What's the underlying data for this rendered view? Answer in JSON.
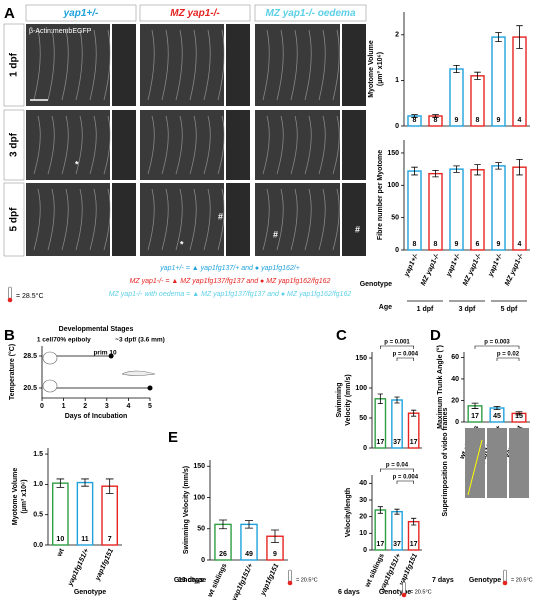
{
  "figure": {
    "letters": [
      "A",
      "B",
      "C",
      "D",
      "E"
    ],
    "a_columns": [
      "yap1+/-",
      "MZ yap1-/-",
      "MZ yap1-/- oedema"
    ],
    "a_rows": [
      "1 dpf",
      "3 dpf",
      "5 dpf"
    ],
    "a_stain": "β-Actin:membEGFP",
    "a_marks": [
      "*",
      "*",
      "#",
      "#",
      "#"
    ],
    "legend": [
      "yap1+/- = ▲ yap1fg137/+ and ● yap1fg162/+",
      "MZ yap1-/- = ▲ MZ yap1fg137/fg137 and ● MZ yap1fg162/fg162",
      "MZ yap1-/- with oedema = ▲ MZ yap1fg137/fg137 and ● MZ yap1fg162/fg162"
    ],
    "a_temp": "= 28.5°C",
    "d_side": "Superimposition of video frames"
  },
  "chart_data": [
    {
      "type": "bar",
      "ylabel": [
        "Myotome Volume",
        "(µm³ x10⁶)"
      ],
      "ylim": [
        0,
        2.5
      ],
      "yticks": [
        0,
        1,
        2
      ],
      "values": [
        0.22,
        0.22,
        1.25,
        1.1,
        1.95,
        1.95
      ],
      "errors": [
        0.03,
        0.03,
        0.08,
        0.08,
        0.1,
        0.25
      ],
      "n": [
        8,
        8,
        9,
        8,
        9,
        4
      ],
      "colors": [
        "#1fa2dc",
        "#e52421",
        "#1fa2dc",
        "#e52421",
        "#1fa2dc",
        "#e52421"
      ]
    },
    {
      "type": "bar",
      "ylabel": [
        "Fibre number per Myotome"
      ],
      "ylim": [
        0,
        170
      ],
      "yticks": [
        0,
        50,
        100,
        150
      ],
      "categories": [
        "yap1+/-",
        "MZ yap1-/-",
        "yap1+/-",
        "MZ yap1-/-",
        "yap1+/-",
        "MZ yap1-/-"
      ],
      "values": [
        122,
        118,
        125,
        124,
        130,
        128
      ],
      "errors": [
        6,
        5,
        5,
        8,
        5,
        12
      ],
      "n": [
        8,
        8,
        9,
        6,
        9,
        4
      ],
      "colors": [
        "#1fa2dc",
        "#e52421",
        "#1fa2dc",
        "#e52421",
        "#1fa2dc",
        "#e52421"
      ],
      "xlabel": "Genotype",
      "age_label": "Age",
      "age_groups": [
        "1 dpf",
        "3 dpf",
        "5 dpf"
      ]
    },
    {
      "type": "bar",
      "ylabel": [
        "Myotome Volume",
        "(µm³ x10⁶)"
      ],
      "ylim": [
        0,
        1.6
      ],
      "yticks": [
        {
          "value": 0,
          "label": "0.0"
        },
        {
          "value": 0.5,
          "label": "0.5"
        },
        {
          "value": 1,
          "label": "1.0"
        },
        {
          "value": 1.5,
          "label": "1.5"
        }
      ],
      "categories": [
        "wt",
        "yap1fg151/+",
        "yap1fg151"
      ],
      "values": [
        1.02,
        1.03,
        0.97
      ],
      "errors": [
        0.07,
        0.06,
        0.12
      ],
      "n": [
        10,
        11,
        7
      ],
      "colors": [
        "#2f9e44",
        "#1fa2dc",
        "#e52421"
      ],
      "xlabel": "Genotype"
    },
    {
      "type": "bar",
      "ylabel": [
        "Swimming",
        "Velocity (mm/s)"
      ],
      "ylim": [
        0,
        160
      ],
      "yticks": [
        0,
        50,
        100,
        150
      ],
      "values": [
        82,
        80,
        58
      ],
      "errors": [
        8,
        5,
        5
      ],
      "n": [
        17,
        37,
        17
      ],
      "colors": [
        "#2f9e44",
        "#1fa2dc",
        "#e52421"
      ],
      "annotations": [
        "p = 0.001",
        "p = 0.004"
      ]
    },
    {
      "type": "bar",
      "ylabel": [
        "Velocity/length"
      ],
      "ylim": [
        0,
        45
      ],
      "yticks": [
        0,
        10,
        20,
        30,
        40
      ],
      "categories": [
        "wt siblings",
        "yap1fg151/+",
        "yap1fg151"
      ],
      "values": [
        24,
        23,
        17
      ],
      "errors": [
        2,
        1.5,
        2
      ],
      "n": [
        17,
        37,
        17
      ],
      "colors": [
        "#2f9e44",
        "#1fa2dc",
        "#e52421"
      ],
      "annotations": [
        "p = 0.04",
        "p = 0.004"
      ],
      "xlabel": "Genotype",
      "note": "6 days",
      "temp": "= 20.5°C"
    },
    {
      "type": "bar",
      "ylabel": [
        "Maximum Trunk Angle (°)"
      ],
      "ylim": [
        0,
        65
      ],
      "yticks": [
        0,
        20,
        40,
        60
      ],
      "categories": [
        "wt siblings",
        "yap1fg151/+",
        "yap1fg151"
      ],
      "values": [
        15,
        13,
        8
      ],
      "errors": [
        2.5,
        1.5,
        1.5
      ],
      "n": [
        17,
        45,
        15
      ],
      "colors": [
        "#2f9e44",
        "#1fa2dc",
        "#e52421"
      ],
      "annotations": [
        "p = 0.003",
        "p = 0.02"
      ],
      "xlabel": "Genotype",
      "note": "7 days",
      "temp": "= 20.5°C"
    },
    {
      "type": "bar",
      "ylabel": [
        "Swimming Velocity (mm/s)"
      ],
      "ylim": [
        0,
        160
      ],
      "yticks": [
        0,
        50,
        100,
        150
      ],
      "categories": [
        "wt siblings",
        "yap1fg151/+",
        "yap1fg151"
      ],
      "values": [
        57,
        57,
        38
      ],
      "errors": [
        7,
        6,
        10
      ],
      "n": [
        26,
        49,
        9
      ],
      "colors": [
        "#2f9e44",
        "#1fa2dc",
        "#e52421"
      ],
      "xlabel": "Genotype",
      "note": "13 days",
      "temp": "= 20.5°C"
    },
    {
      "type": "schedule",
      "title": "Developmental Stages",
      "ylabel": "Temperature (°C)",
      "xlabel": "Days of Incubation",
      "xlim": [
        0,
        5
      ],
      "ylim": [
        18,
        31
      ],
      "xticks": [
        0,
        1,
        2,
        3,
        4,
        5
      ],
      "yticks": [
        20.5,
        28.5
      ],
      "series": [
        {
          "color": "#000000",
          "x": [
            0.3,
            3.2
          ],
          "values": [
            28.5,
            28.5
          ]
        },
        {
          "color": "#000000",
          "x": [
            0.3,
            5
          ],
          "values": [
            20.5,
            20.5
          ]
        }
      ],
      "stages": [
        "1 cell",
        "70% epiboly",
        "prim 10",
        "~3 dpf/ (3.6 mm)"
      ]
    }
  ]
}
